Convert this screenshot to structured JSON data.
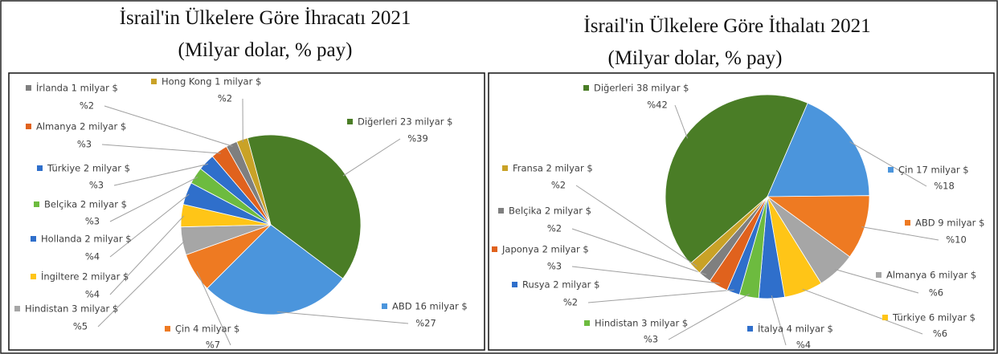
{
  "chart_data": [
    {
      "type": "pie",
      "title": "İsrail'in Ülkelere Göre İhracatı 2021",
      "subtitle": "(Milyar dolar, % pay)",
      "categories": [
        "Diğerleri 23 milyar $",
        "ABD 16 milyar $",
        "Çin 4 milyar $",
        "Hindistan 3 milyar $",
        "İngiltere 2 milyar $",
        "Hollanda 2 milyar $",
        "Belçika 2 milyar $",
        "Türkiye 2 milyar $",
        "Almanya 2 milyar $",
        "İrlanda 1 milyar $",
        "Hong Kong 1 milyar $"
      ],
      "values": [
        39,
        27,
        7,
        5,
        4,
        4,
        3,
        3,
        3,
        2,
        2
      ],
      "value_labels": [
        "%39",
        "%27",
        "%7",
        "%5",
        "%4",
        "%4",
        "%3",
        "%3",
        "%3",
        "%2",
        "%2"
      ],
      "colors": [
        "#4a7d26",
        "#4b95dc",
        "#ee7a22",
        "#a6a6a6",
        "#ffc517",
        "#2f6fcb",
        "#6dbb3f",
        "#2f6fcb",
        "#e0621d",
        "#7f7f7f",
        "#c9a227"
      ]
    },
    {
      "type": "pie",
      "title": "İsrail'in Ülkelere Göre İthalatı 2021",
      "subtitle": "(Milyar dolar, % pay)",
      "categories": [
        "Diğerleri 38 milyar $",
        "Çin 17 milyar $",
        "ABD 9 milyar $",
        "Almanya 6 milyar $",
        "Türkiye 6 milyar $",
        "İtalya 4 milyar $",
        "Hindistan 3 milyar $",
        "Rusya 2 milyar $",
        "Japonya 2 milyar $",
        "Belçika 2 milyar $",
        "Fransa 2 milyar $"
      ],
      "values": [
        42,
        18,
        10,
        6,
        6,
        4,
        3,
        2,
        3,
        2,
        2
      ],
      "value_labels": [
        "%42",
        "%18",
        "%10",
        "%6",
        "%6",
        "%4",
        "%3",
        "%2",
        "%3",
        "%2",
        "%2"
      ],
      "colors": [
        "#4a7d26",
        "#4b95dc",
        "#ee7a22",
        "#a6a6a6",
        "#ffc517",
        "#2f6fcb",
        "#6dbb3f",
        "#2f6fcb",
        "#e0621d",
        "#7f7f7f",
        "#c9a227"
      ]
    }
  ]
}
